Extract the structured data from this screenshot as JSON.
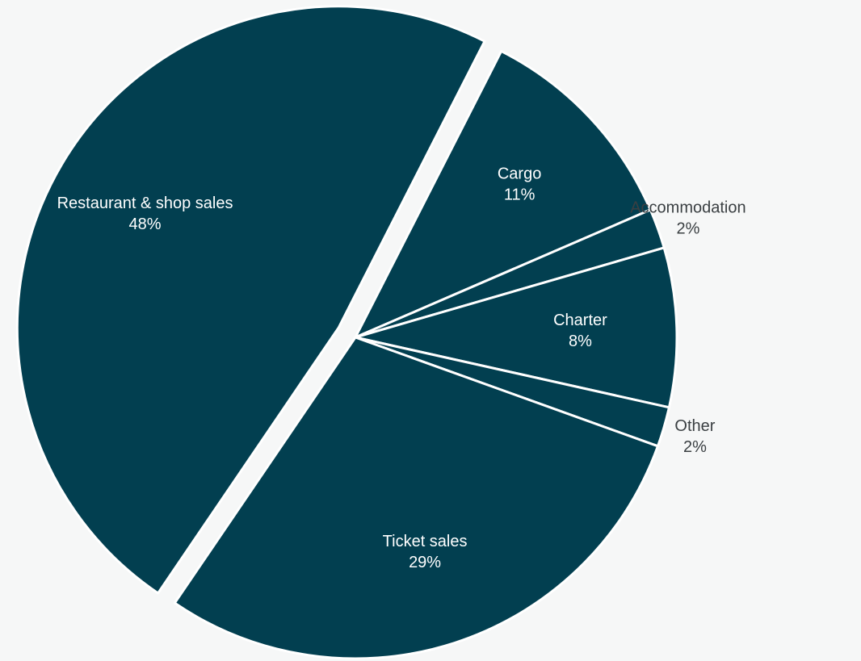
{
  "chart_data": {
    "type": "pie",
    "title": "",
    "slices": [
      {
        "name": "Cargo",
        "value": 11,
        "label": "11%",
        "label_position": "inside"
      },
      {
        "name": "Accommodation",
        "value": 2,
        "label": "2%",
        "label_position": "outside"
      },
      {
        "name": "Charter",
        "value": 8,
        "label": "8%",
        "label_position": "inside"
      },
      {
        "name": "Other",
        "value": 2,
        "label": "2%",
        "label_position": "outside"
      },
      {
        "name": "Ticket sales",
        "value": 29,
        "label": "29%",
        "label_position": "inside"
      },
      {
        "name": "Restaurant & shop sales",
        "value": 48,
        "label": "48%",
        "label_position": "inside",
        "exploded": true
      }
    ],
    "legend": "none"
  },
  "colors": {
    "slice_fill": "#023f50",
    "slice_stroke": "#ffffff",
    "background": "#f6f7f7",
    "inside_label": "#ffffff",
    "outside_label": "#3a3f42"
  }
}
